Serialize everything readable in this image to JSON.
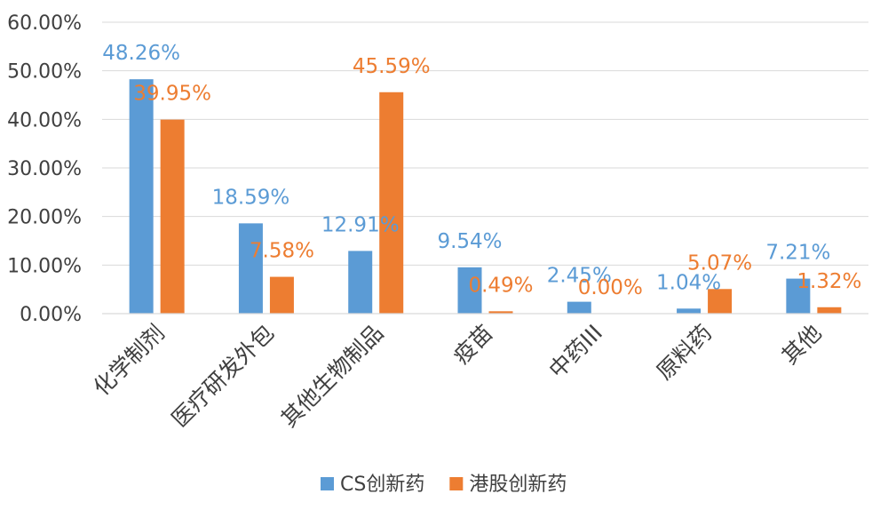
{
  "chart_data": {
    "type": "bar",
    "categories": [
      "化学制剂",
      "医疗研发外包",
      "其他生物制品",
      "疫苗",
      "中药III",
      "原料药",
      "其他"
    ],
    "series": [
      {
        "name": "CS创新药",
        "color": "#5B9BD5",
        "values": [
          48.26,
          18.59,
          12.91,
          9.54,
          2.45,
          1.04,
          7.21
        ],
        "labels": [
          "48.26%",
          "18.59%",
          "12.91%",
          "9.54%",
          "2.45%",
          "1.04%",
          "7.21%"
        ]
      },
      {
        "name": "港股创新药",
        "color": "#ED7D31",
        "values": [
          39.95,
          7.58,
          45.59,
          0.49,
          0.0,
          5.07,
          1.32
        ],
        "labels": [
          "39.95%",
          "7.58%",
          "45.59%",
          "0.49%",
          "0.00%",
          "5.07%",
          "1.32%"
        ]
      }
    ],
    "ylim": [
      0,
      60
    ],
    "yticks": [
      0,
      10,
      20,
      30,
      40,
      50,
      60
    ],
    "ytick_labels": [
      "0.00%",
      "10.00%",
      "20.00%",
      "30.00%",
      "40.00%",
      "50.00%",
      "60.00%"
    ],
    "grid": true,
    "legend_position": "bottom"
  }
}
